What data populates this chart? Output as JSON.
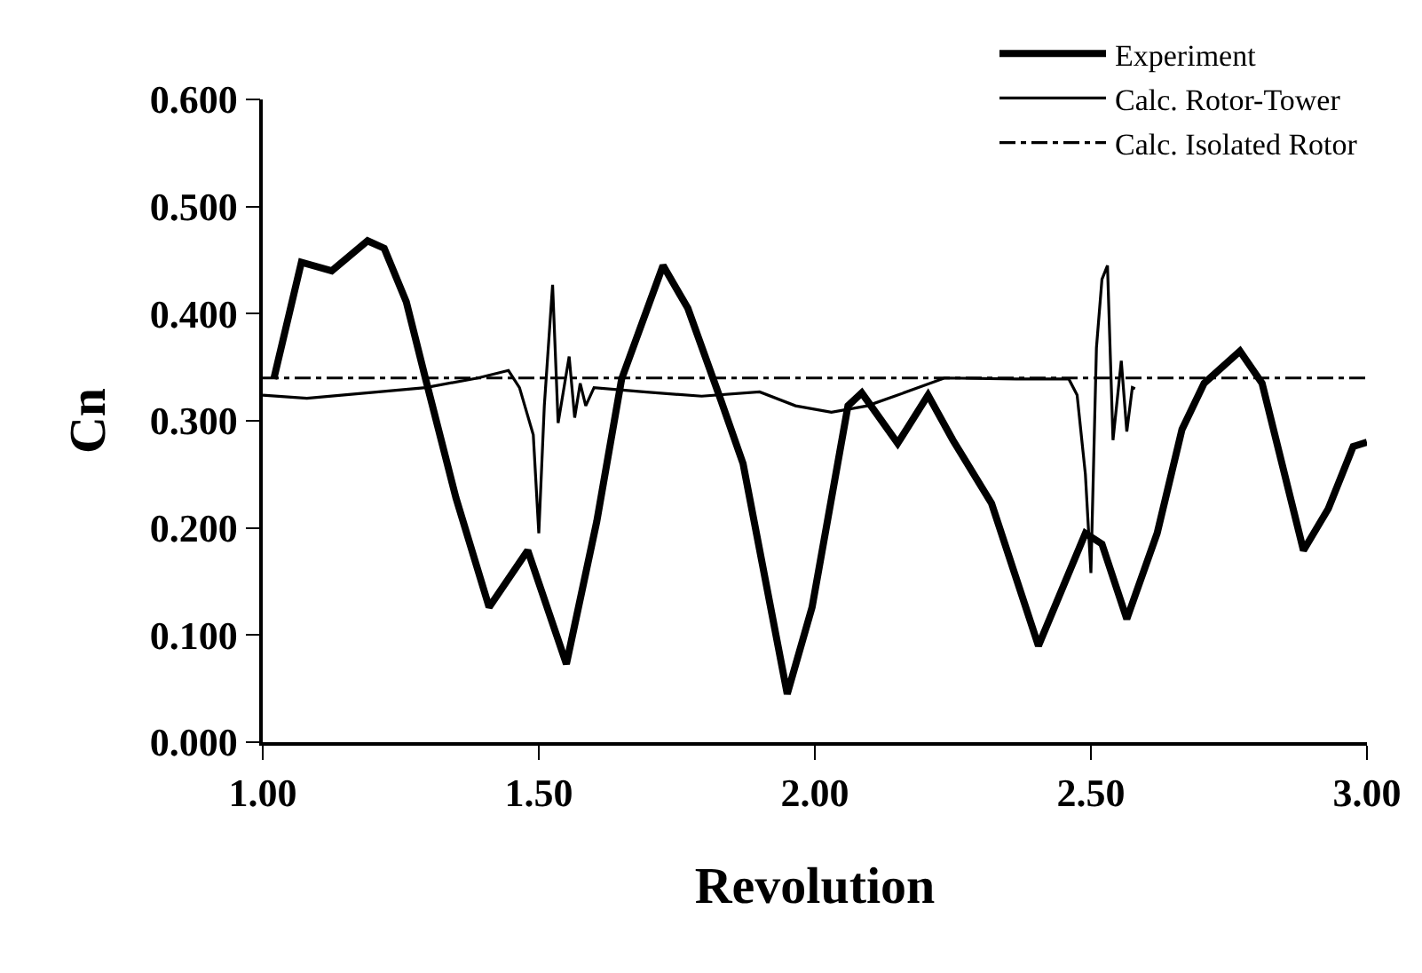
{
  "chart_data": {
    "type": "line",
    "xlabel": "Revolution",
    "ylabel": "Cn",
    "xlim": [
      1,
      3
    ],
    "ylim": [
      0,
      0.6
    ],
    "xticks": [
      {
        "value": 1,
        "label": "1.00"
      },
      {
        "value": 1.5,
        "label": "1.50"
      },
      {
        "value": 2,
        "label": "2.00"
      },
      {
        "value": 2.5,
        "label": "2.50"
      },
      {
        "value": 3,
        "label": "3.00"
      }
    ],
    "yticks": [
      {
        "value": 0,
        "label": "0.000"
      },
      {
        "value": 0.1,
        "label": "0.100"
      },
      {
        "value": 0.2,
        "label": "0.200"
      },
      {
        "value": 0.3,
        "label": "0.300"
      },
      {
        "value": 0.4,
        "label": "0.400"
      },
      {
        "value": 0.5,
        "label": "0.500"
      },
      {
        "value": 0.6,
        "label": "0.600"
      }
    ],
    "grid": false,
    "legend": "top right",
    "marker": "none",
    "series": [
      {
        "name": "Experiment",
        "color": "#000000",
        "line_style": "solid",
        "x": [
          1.02,
          1.07,
          1.125,
          1.19,
          1.22,
          1.26,
          1.295,
          1.35,
          1.41,
          1.48,
          1.55,
          1.605,
          1.65,
          1.725,
          1.77,
          1.83,
          1.87,
          1.95,
          1.995,
          2.06,
          2.085,
          2.15,
          2.205,
          2.25,
          2.32,
          2.405,
          2.49,
          2.52,
          2.565,
          2.62,
          2.665,
          2.705,
          2.77,
          2.81,
          2.885,
          2.93,
          2.975,
          3.0
        ],
        "values": [
          0.339,
          0.448,
          0.44,
          0.468,
          0.461,
          0.411,
          0.339,
          0.228,
          0.126,
          0.179,
          0.073,
          0.206,
          0.339,
          0.445,
          0.405,
          0.319,
          0.26,
          0.045,
          0.126,
          0.314,
          0.326,
          0.279,
          0.324,
          0.282,
          0.223,
          0.09,
          0.195,
          0.185,
          0.115,
          0.195,
          0.292,
          0.335,
          0.365,
          0.335,
          0.179,
          0.218,
          0.276,
          0.28
        ]
      },
      {
        "name": "Calc. Rotor-Tower",
        "color": "#000000",
        "line_style": "solid",
        "x": [
          1.0,
          1.08,
          1.21,
          1.295,
          1.39,
          1.445,
          1.465,
          1.49,
          1.5,
          1.51,
          1.525,
          1.535,
          1.555,
          1.565,
          1.575,
          1.585,
          1.6,
          1.69,
          1.795,
          1.9,
          1.965,
          2.03,
          2.095,
          2.15,
          2.235,
          2.365,
          2.46,
          2.475,
          2.49,
          2.5,
          2.51,
          2.52,
          2.53,
          2.54,
          2.555,
          2.565,
          2.575,
          2.58
        ],
        "values": [
          0.324,
          0.321,
          0.327,
          0.331,
          0.34,
          0.347,
          0.331,
          0.287,
          0.195,
          0.314,
          0.427,
          0.298,
          0.36,
          0.303,
          0.335,
          0.314,
          0.331,
          0.327,
          0.323,
          0.327,
          0.314,
          0.308,
          0.314,
          0.324,
          0.34,
          0.339,
          0.339,
          0.324,
          0.25,
          0.158,
          0.368,
          0.432,
          0.445,
          0.282,
          0.356,
          0.29,
          0.331,
          0.33
        ]
      },
      {
        "name": "Calc. Isolated Rotor",
        "color": "#000000",
        "line_style": "dashdot",
        "x": [
          1.0,
          3.0
        ],
        "values": [
          0.34,
          0.34
        ]
      }
    ]
  }
}
